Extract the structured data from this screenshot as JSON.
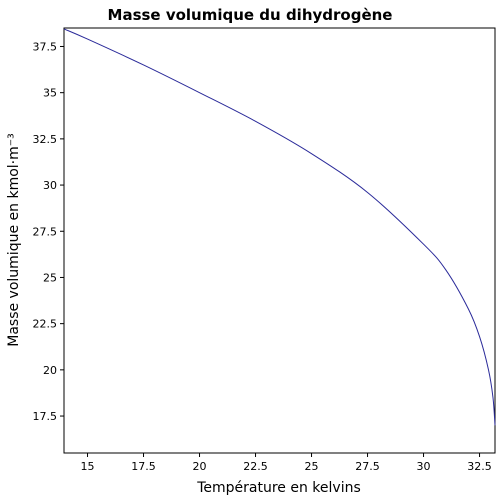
{
  "chart_data": {
    "type": "line",
    "title": "Masse volumique du dihydrogène",
    "xlabel": "Température en kelvins",
    "ylabel": "Masse volumique en kmol·m⁻³",
    "xlim": [
      13.95,
      33.19
    ],
    "ylim": [
      15.5,
      38.5
    ],
    "x_ticks": [
      15,
      17.5,
      20,
      22.5,
      25,
      27.5,
      30,
      32.5
    ],
    "x_tick_labels": [
      "15",
      "17.5",
      "20",
      "22.5",
      "25",
      "27.5",
      "30",
      "32.5"
    ],
    "y_ticks": [
      17.5,
      20,
      22.5,
      25,
      27.5,
      30,
      32.5,
      35,
      37.5
    ],
    "y_tick_labels": [
      "17.5",
      "20",
      "22.5",
      "25",
      "27.5",
      "30",
      "32.5",
      "35",
      "37.5"
    ],
    "grid": false,
    "series": [
      {
        "color": "#2b2b9a",
        "x": [
          13.95,
          15,
          17.5,
          20,
          22.5,
          25,
          27.5,
          30,
          31,
          32,
          32.5,
          32.9,
          33.1,
          33.19
        ],
        "y": [
          38.45,
          37.9,
          36.5,
          35.0,
          33.45,
          31.7,
          29.6,
          26.8,
          25.4,
          23.3,
          21.8,
          20.0,
          18.5,
          17.0
        ]
      }
    ]
  }
}
